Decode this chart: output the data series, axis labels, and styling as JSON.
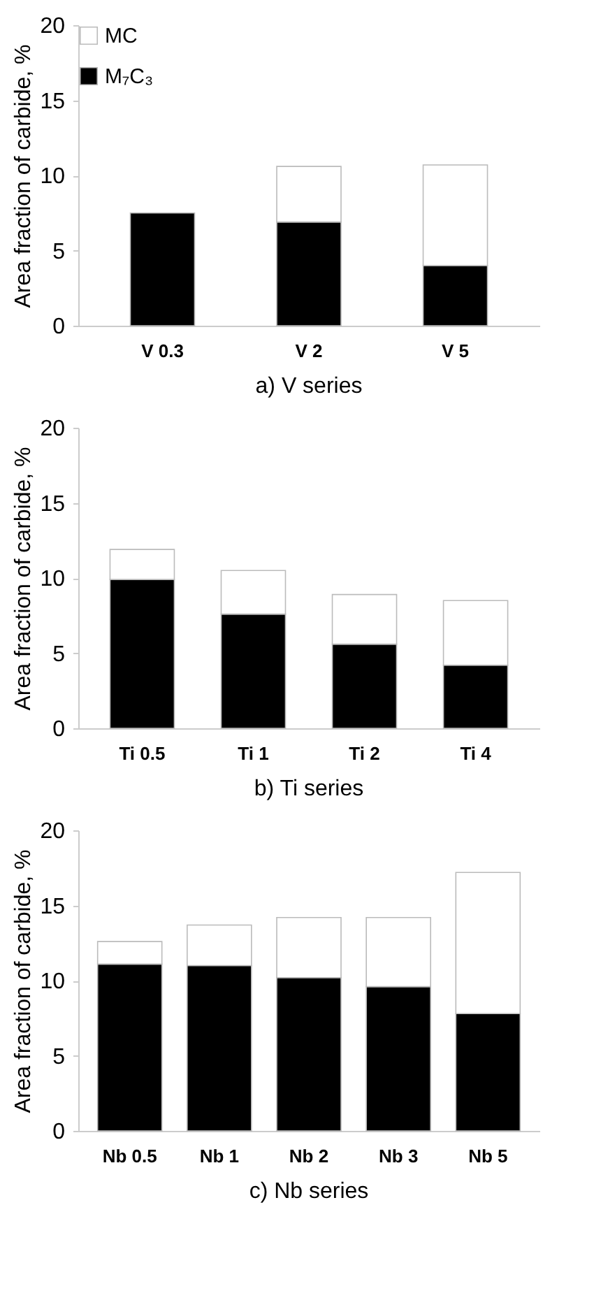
{
  "chart_data": [
    {
      "type": "bar",
      "title": "a) V series",
      "ylabel": "Area fraction of carbide, %",
      "categories": [
        "V 0.3",
        "V 2",
        "V 5"
      ],
      "stacked": true,
      "legend": "top left",
      "grid": false,
      "ylim": [
        0,
        20
      ],
      "yticks": [
        0,
        5,
        10,
        15,
        20
      ],
      "series": [
        {
          "name": "M₇C₃",
          "color": "#000000",
          "values": [
            7.5,
            6.9,
            4.0
          ]
        },
        {
          "name": "MC",
          "color": "#ffffff",
          "values": [
            null,
            3.7,
            6.7
          ]
        }
      ]
    },
    {
      "type": "bar",
      "title": "b) Ti series",
      "ylabel": "Area fraction of carbide, %",
      "categories": [
        "Ti 0.5",
        "Ti 1",
        "Ti 2",
        "Ti 4"
      ],
      "stacked": true,
      "legend": "top left",
      "grid": false,
      "ylim": [
        0,
        20
      ],
      "yticks": [
        0,
        5,
        10,
        15,
        20
      ],
      "series": [
        {
          "name": "M₇C₃",
          "color": "#000000",
          "values": [
            9.9,
            7.6,
            5.6,
            4.2
          ]
        },
        {
          "name": "MC",
          "color": "#ffffff",
          "values": [
            2.0,
            2.9,
            3.3,
            4.3
          ]
        }
      ]
    },
    {
      "type": "bar",
      "title": "c) Nb series",
      "ylabel": "Area fraction of carbide, %",
      "categories": [
        "Nb 0.5",
        "Nb 1",
        "Nb 2",
        "Nb 3",
        "Nb 5"
      ],
      "stacked": true,
      "legend": "top left",
      "grid": false,
      "ylim": [
        0,
        20
      ],
      "yticks": [
        0,
        5,
        10,
        15,
        20
      ],
      "series": [
        {
          "name": "M₇C₃",
          "color": "#000000",
          "values": [
            11.1,
            11.0,
            10.2,
            9.6,
            7.8
          ]
        },
        {
          "name": "MC",
          "color": "#ffffff",
          "values": [
            1.5,
            2.7,
            4.0,
            4.6,
            9.4
          ]
        }
      ]
    }
  ]
}
